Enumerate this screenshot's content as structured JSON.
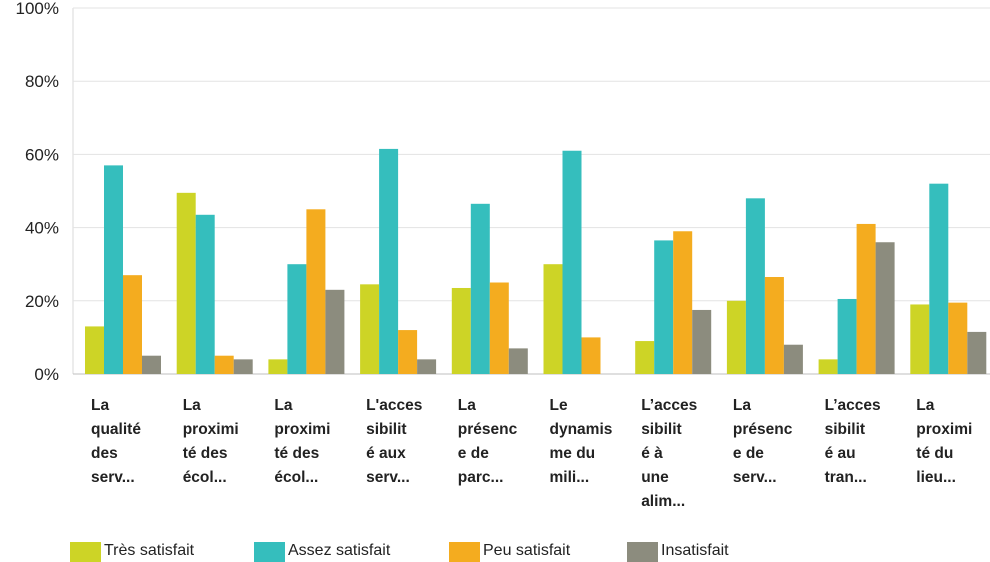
{
  "chart_data": {
    "type": "bar",
    "ylim": [
      0,
      100
    ],
    "y_ticks": [
      "0%",
      "20%",
      "40%",
      "60%",
      "80%",
      "100%"
    ],
    "grid": true,
    "legend_position": "bottom",
    "categories": [
      [
        "La",
        "qualité",
        "des",
        "serv..."
      ],
      [
        "La",
        "proximi",
        "té des",
        "écol..."
      ],
      [
        "La",
        "proximi",
        "té des",
        "écol..."
      ],
      [
        "L'acces",
        "sibilit",
        "é aux",
        "serv..."
      ],
      [
        "La",
        "présenc",
        "e de",
        "parc..."
      ],
      [
        "Le",
        "dynamis",
        "me du",
        "mili..."
      ],
      [
        "L’acces",
        "sibilit",
        "é à",
        "une",
        "alim..."
      ],
      [
        "La",
        "présenc",
        "e de",
        "serv..."
      ],
      [
        "L’acces",
        "sibilit",
        "é au",
        "tran..."
      ],
      [
        "La",
        "proximi",
        "té du",
        "lieu..."
      ]
    ],
    "series": [
      {
        "name": "Très satisfait",
        "color": "#cdd426",
        "values": [
          13,
          49.5,
          4,
          24.5,
          23.5,
          30,
          9,
          20,
          4,
          19
        ]
      },
      {
        "name": "Assez satisfait",
        "color": "#35bebd",
        "values": [
          57,
          43.5,
          30,
          61.5,
          46.5,
          61,
          36.5,
          48,
          20.5,
          52
        ]
      },
      {
        "name": "Peu satisfait",
        "color": "#f4ac1f",
        "values": [
          27,
          5,
          45,
          12,
          25,
          10,
          39,
          26.5,
          41,
          19.5
        ]
      },
      {
        "name": "Insatisfait",
        "color": "#8c8c7e",
        "values": [
          5,
          4,
          23,
          4,
          7,
          0,
          17.5,
          8,
          36,
          11.5
        ]
      }
    ]
  }
}
